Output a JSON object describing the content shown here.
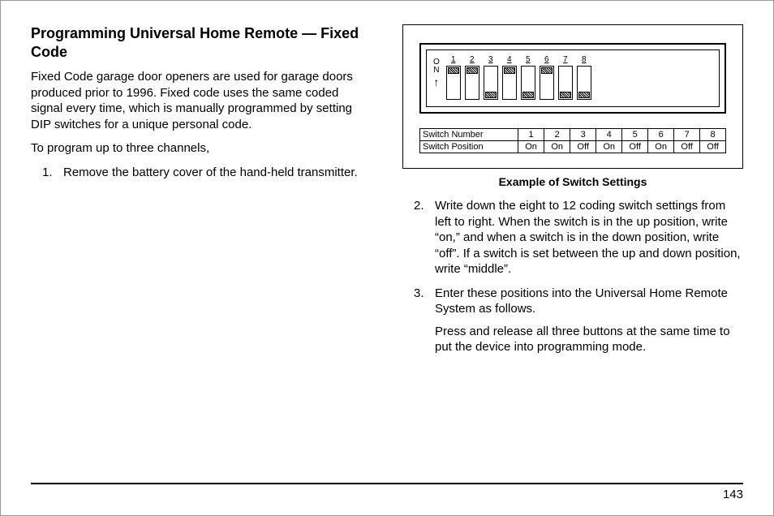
{
  "title": "Programming Universal Home Remote — Fixed Code",
  "intro": "Fixed Code garage door openers are used for garage doors produced prior to 1996. Fixed code uses the same coded signal every time, which is manually programmed by setting DIP switches for a unique personal code.",
  "lead": "To program up to three channels,",
  "steps": {
    "s1": {
      "num": "1.",
      "text": "Remove the battery cover of the hand-held transmitter."
    },
    "s2": {
      "num": "2.",
      "text": "Write down the eight to 12 coding switch settings from left to right. When the switch is in the up position, write “on,” and when a switch is in the down position, write “off”. If a switch is set between the up and down position, write “middle”."
    },
    "s3": {
      "num": "3.",
      "text": "Enter these positions into the Universal Home Remote System as follows.",
      "cont": "Press and release all three buttons at the same time to put the device into programming mode."
    }
  },
  "figure": {
    "on_label_o": "O",
    "on_label_n": "N",
    "arrow": "↑",
    "switch_count": 8,
    "switches": [
      {
        "num": "1",
        "pos": "On"
      },
      {
        "num": "2",
        "pos": "On"
      },
      {
        "num": "3",
        "pos": "Off"
      },
      {
        "num": "4",
        "pos": "On"
      },
      {
        "num": "5",
        "pos": "Off"
      },
      {
        "num": "6",
        "pos": "On"
      },
      {
        "num": "7",
        "pos": "Off"
      },
      {
        "num": "8",
        "pos": "Off"
      }
    ],
    "table_row1_label": "Switch Number",
    "table_row2_label": "Switch Position",
    "caption": "Example of Switch Settings"
  },
  "page_number": "143",
  "colors": {
    "text": "#000000",
    "background": "#ffffff",
    "border": "#000000"
  }
}
